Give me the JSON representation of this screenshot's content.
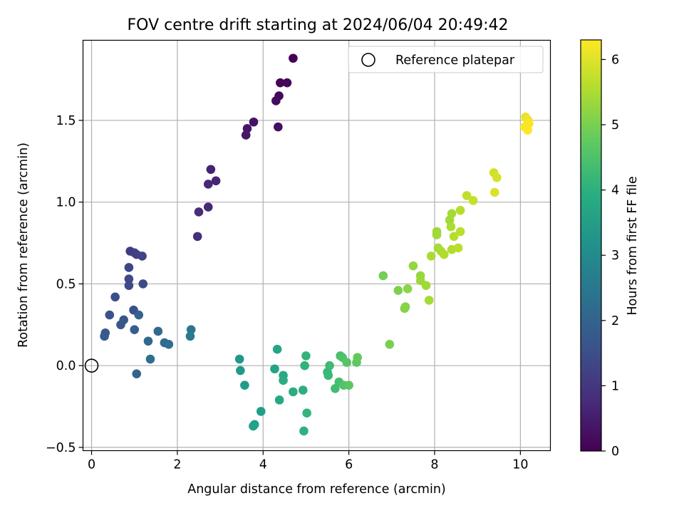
{
  "chart_data": {
    "type": "scatter",
    "title": "FOV centre drift starting at 2024/06/04 20:49:42",
    "xlabel": "Angular distance from reference (arcmin)",
    "ylabel": "Rotation from reference (arcmin)",
    "xlim": [
      -0.2,
      10.7
    ],
    "ylim": [
      -0.52,
      1.99
    ],
    "x_ticks": [
      0,
      2,
      4,
      6,
      8,
      10
    ],
    "x_tick_labels": [
      "0",
      "2",
      "4",
      "6",
      "8",
      "10"
    ],
    "y_ticks": [
      -0.5,
      0.0,
      0.5,
      1.0,
      1.5
    ],
    "y_tick_labels": [
      "−0.5",
      "0.0",
      "0.5",
      "1.0",
      "1.5"
    ],
    "grid": true,
    "legend": {
      "position": "top-right",
      "entries": [
        "Reference platepar"
      ]
    },
    "reference_point": {
      "x": 0.0,
      "y": 0.0
    },
    "colorbar": {
      "label": "Hours from first FF file",
      "colormap": "viridis",
      "range": [
        0,
        6.3
      ],
      "ticks": [
        0,
        1,
        2,
        3,
        4,
        5,
        6
      ],
      "tick_labels": [
        "0",
        "1",
        "2",
        "3",
        "4",
        "5",
        "6"
      ]
    },
    "series": [
      {
        "points": [
          [
            4.7,
            1.88,
            0.0
          ],
          [
            4.4,
            1.73,
            0.05
          ],
          [
            4.56,
            1.73,
            0.1
          ],
          [
            4.37,
            1.65,
            0.15
          ],
          [
            4.3,
            1.62,
            0.2
          ],
          [
            4.35,
            1.46,
            0.25
          ],
          [
            3.78,
            1.49,
            0.3
          ],
          [
            3.63,
            1.45,
            0.35
          ],
          [
            3.6,
            1.41,
            0.4
          ],
          [
            2.78,
            1.2,
            0.6
          ],
          [
            2.9,
            1.13,
            0.65
          ],
          [
            2.72,
            1.11,
            0.7
          ],
          [
            2.72,
            0.97,
            0.75
          ],
          [
            2.5,
            0.94,
            0.8
          ],
          [
            2.47,
            0.79,
            0.85
          ],
          [
            0.9,
            0.7,
            1.1
          ],
          [
            1.0,
            0.69,
            1.15
          ],
          [
            1.05,
            0.68,
            1.2
          ],
          [
            1.18,
            0.67,
            1.25
          ],
          [
            0.87,
            0.6,
            1.3
          ],
          [
            0.87,
            0.53,
            1.35
          ],
          [
            0.87,
            0.49,
            1.4
          ],
          [
            1.2,
            0.5,
            1.45
          ],
          [
            0.55,
            0.42,
            1.5
          ],
          [
            0.98,
            0.34,
            1.55
          ],
          [
            0.42,
            0.31,
            1.6
          ],
          [
            0.75,
            0.28,
            1.65
          ],
          [
            0.68,
            0.25,
            1.7
          ],
          [
            0.32,
            0.2,
            1.75
          ],
          [
            0.3,
            0.18,
            1.8
          ],
          [
            1.0,
            0.22,
            1.9
          ],
          [
            1.1,
            0.31,
            1.95
          ],
          [
            1.05,
            -0.05,
            2.0
          ],
          [
            1.32,
            0.15,
            2.1
          ],
          [
            1.55,
            0.21,
            2.15
          ],
          [
            1.7,
            0.14,
            2.2
          ],
          [
            1.8,
            0.13,
            2.25
          ],
          [
            1.37,
            0.04,
            2.3
          ],
          [
            2.32,
            0.22,
            2.5
          ],
          [
            2.3,
            0.18,
            2.55
          ],
          [
            3.45,
            0.04,
            3.35
          ],
          [
            3.47,
            -0.03,
            3.4
          ],
          [
            3.57,
            -0.12,
            3.45
          ],
          [
            3.95,
            -0.28,
            3.5
          ],
          [
            3.8,
            -0.36,
            3.55
          ],
          [
            3.77,
            -0.37,
            3.6
          ],
          [
            4.27,
            -0.02,
            3.65
          ],
          [
            4.33,
            0.1,
            3.7
          ],
          [
            4.38,
            -0.21,
            3.75
          ],
          [
            4.47,
            -0.06,
            3.8
          ],
          [
            4.47,
            -0.09,
            3.85
          ],
          [
            4.7,
            -0.16,
            3.9
          ],
          [
            4.93,
            -0.15,
            3.95
          ],
          [
            4.95,
            -0.4,
            4.0
          ],
          [
            4.97,
            0.0,
            4.05
          ],
          [
            5.0,
            0.06,
            4.1
          ],
          [
            5.02,
            -0.29,
            4.15
          ],
          [
            5.5,
            -0.04,
            4.2
          ],
          [
            5.52,
            -0.06,
            4.25
          ],
          [
            5.55,
            0.0,
            4.3
          ],
          [
            5.68,
            -0.14,
            4.35
          ],
          [
            5.77,
            -0.1,
            4.4
          ],
          [
            5.8,
            0.06,
            4.45
          ],
          [
            5.85,
            0.05,
            4.5
          ],
          [
            5.88,
            -0.12,
            4.55
          ],
          [
            5.95,
            0.02,
            4.6
          ],
          [
            6.0,
            -0.12,
            4.65
          ],
          [
            6.18,
            0.02,
            4.7
          ],
          [
            6.2,
            0.05,
            4.75
          ],
          [
            6.8,
            0.55,
            4.95
          ],
          [
            6.95,
            0.13,
            5.0
          ],
          [
            7.15,
            0.46,
            5.05
          ],
          [
            7.3,
            0.35,
            5.1
          ],
          [
            7.32,
            0.36,
            5.15
          ],
          [
            7.37,
            0.47,
            5.2
          ],
          [
            7.5,
            0.61,
            5.25
          ],
          [
            7.67,
            0.55,
            5.3
          ],
          [
            7.67,
            0.52,
            5.35
          ],
          [
            7.8,
            0.49,
            5.4
          ],
          [
            7.87,
            0.4,
            5.45
          ],
          [
            7.92,
            0.67,
            5.5
          ],
          [
            8.05,
            0.82,
            5.35
          ],
          [
            8.05,
            0.8,
            5.4
          ],
          [
            8.08,
            0.72,
            5.45
          ],
          [
            8.15,
            0.7,
            5.5
          ],
          [
            8.22,
            0.68,
            5.55
          ],
          [
            8.35,
            0.89,
            5.4
          ],
          [
            8.4,
            0.93,
            5.45
          ],
          [
            8.38,
            0.85,
            5.5
          ],
          [
            8.4,
            0.71,
            5.55
          ],
          [
            8.45,
            0.79,
            5.6
          ],
          [
            8.55,
            0.72,
            5.65
          ],
          [
            8.6,
            0.95,
            5.6
          ],
          [
            8.6,
            0.82,
            5.65
          ],
          [
            8.75,
            1.04,
            5.7
          ],
          [
            8.9,
            1.01,
            5.75
          ],
          [
            9.38,
            1.18,
            5.85
          ],
          [
            9.45,
            1.15,
            5.9
          ],
          [
            9.4,
            1.06,
            5.95
          ],
          [
            10.12,
            1.52,
            6.1
          ],
          [
            10.18,
            1.5,
            6.15
          ],
          [
            10.15,
            1.47,
            6.2
          ],
          [
            10.1,
            1.46,
            6.25
          ],
          [
            10.2,
            1.48,
            6.25
          ],
          [
            10.17,
            1.44,
            6.3
          ]
        ]
      }
    ]
  }
}
